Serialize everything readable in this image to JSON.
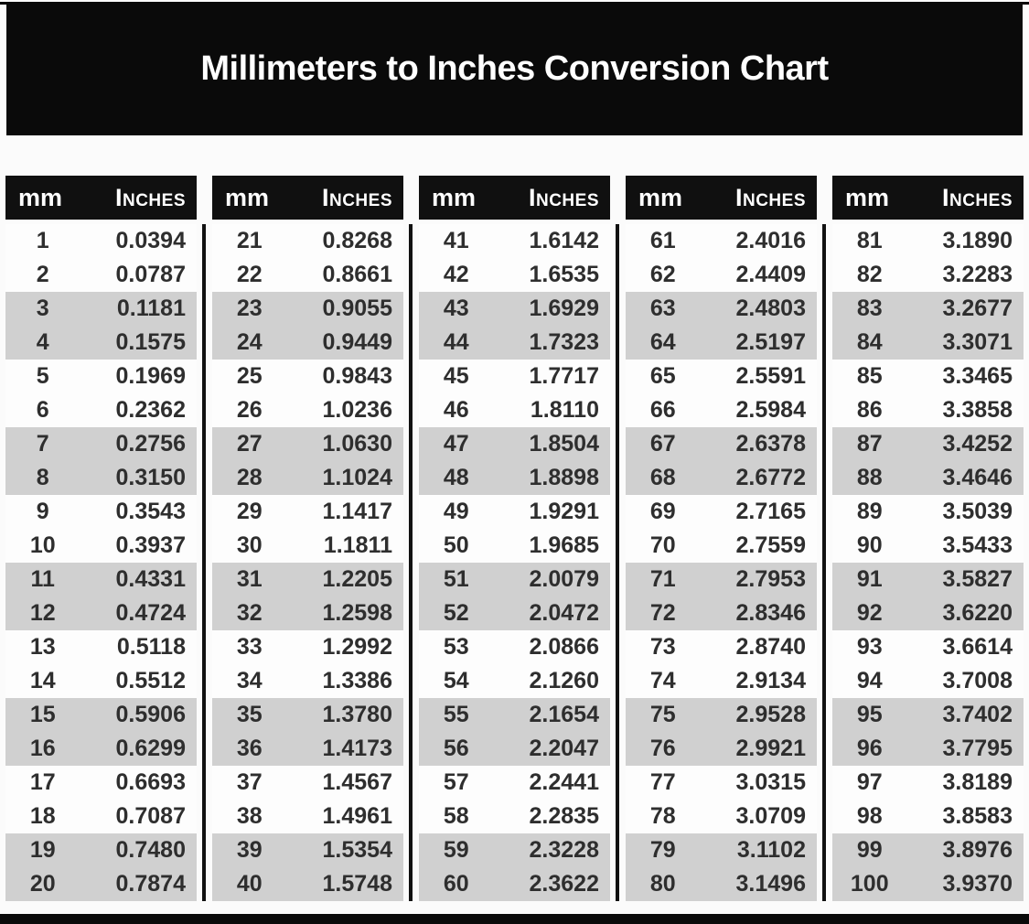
{
  "title": "Millimeters to Inches Conversion Chart",
  "column_headers": {
    "mm": "mm",
    "inches": "Inches"
  },
  "colors": {
    "page_bg": "#fbfbfb",
    "banner_bg": "#0a0a0a",
    "header_bg": "#101010",
    "header_text": "#ffffff",
    "row_plain_bg": "#fdfdfd",
    "row_shaded_bg": "#d0d0d0",
    "divider": "#111111",
    "value_text": "#2e2e2e"
  },
  "chart_data": {
    "type": "table",
    "title": "Millimeters to Inches Conversion Chart",
    "column_headers": [
      "mm",
      "Inches"
    ],
    "layout": "5 table groups side by side, rows shaded in alternating pairs, black vertical divider between groups",
    "tables": [
      {
        "mm_range": "1-20",
        "rows": [
          [
            1,
            "0.0394"
          ],
          [
            2,
            "0.0787"
          ],
          [
            3,
            "0.1181"
          ],
          [
            4,
            "0.1575"
          ],
          [
            5,
            "0.1969"
          ],
          [
            6,
            "0.2362"
          ],
          [
            7,
            "0.2756"
          ],
          [
            8,
            "0.3150"
          ],
          [
            9,
            "0.3543"
          ],
          [
            10,
            "0.3937"
          ],
          [
            11,
            "0.4331"
          ],
          [
            12,
            "0.4724"
          ],
          [
            13,
            "0.5118"
          ],
          [
            14,
            "0.5512"
          ],
          [
            15,
            "0.5906"
          ],
          [
            16,
            "0.6299"
          ],
          [
            17,
            "0.6693"
          ],
          [
            18,
            "0.7087"
          ],
          [
            19,
            "0.7480"
          ],
          [
            20,
            "0.7874"
          ]
        ]
      },
      {
        "mm_range": "21-40",
        "rows": [
          [
            21,
            "0.8268"
          ],
          [
            22,
            "0.8661"
          ],
          [
            23,
            "0.9055"
          ],
          [
            24,
            "0.9449"
          ],
          [
            25,
            "0.9843"
          ],
          [
            26,
            "1.0236"
          ],
          [
            27,
            "1.0630"
          ],
          [
            28,
            "1.1024"
          ],
          [
            29,
            "1.1417"
          ],
          [
            30,
            "1.1811"
          ],
          [
            31,
            "1.2205"
          ],
          [
            32,
            "1.2598"
          ],
          [
            33,
            "1.2992"
          ],
          [
            34,
            "1.3386"
          ],
          [
            35,
            "1.3780"
          ],
          [
            36,
            "1.4173"
          ],
          [
            37,
            "1.4567"
          ],
          [
            38,
            "1.4961"
          ],
          [
            39,
            "1.5354"
          ],
          [
            40,
            "1.5748"
          ]
        ]
      },
      {
        "mm_range": "41-60",
        "rows": [
          [
            41,
            "1.6142"
          ],
          [
            42,
            "1.6535"
          ],
          [
            43,
            "1.6929"
          ],
          [
            44,
            "1.7323"
          ],
          [
            45,
            "1.7717"
          ],
          [
            46,
            "1.8110"
          ],
          [
            47,
            "1.8504"
          ],
          [
            48,
            "1.8898"
          ],
          [
            49,
            "1.9291"
          ],
          [
            50,
            "1.9685"
          ],
          [
            51,
            "2.0079"
          ],
          [
            52,
            "2.0472"
          ],
          [
            53,
            "2.0866"
          ],
          [
            54,
            "2.1260"
          ],
          [
            55,
            "2.1654"
          ],
          [
            56,
            "2.2047"
          ],
          [
            57,
            "2.2441"
          ],
          [
            58,
            "2.2835"
          ],
          [
            59,
            "2.3228"
          ],
          [
            60,
            "2.3622"
          ]
        ]
      },
      {
        "mm_range": "61-80",
        "rows": [
          [
            61,
            "2.4016"
          ],
          [
            62,
            "2.4409"
          ],
          [
            63,
            "2.4803"
          ],
          [
            64,
            "2.5197"
          ],
          [
            65,
            "2.5591"
          ],
          [
            66,
            "2.5984"
          ],
          [
            67,
            "2.6378"
          ],
          [
            68,
            "2.6772"
          ],
          [
            69,
            "2.7165"
          ],
          [
            70,
            "2.7559"
          ],
          [
            71,
            "2.7953"
          ],
          [
            72,
            "2.8346"
          ],
          [
            73,
            "2.8740"
          ],
          [
            74,
            "2.9134"
          ],
          [
            75,
            "2.9528"
          ],
          [
            76,
            "2.9921"
          ],
          [
            77,
            "3.0315"
          ],
          [
            78,
            "3.0709"
          ],
          [
            79,
            "3.1102"
          ],
          [
            80,
            "3.1496"
          ]
        ]
      },
      {
        "mm_range": "81-100",
        "rows": [
          [
            81,
            "3.1890"
          ],
          [
            82,
            "3.2283"
          ],
          [
            83,
            "3.2677"
          ],
          [
            84,
            "3.3071"
          ],
          [
            85,
            "3.3465"
          ],
          [
            86,
            "3.3858"
          ],
          [
            87,
            "3.4252"
          ],
          [
            88,
            "3.4646"
          ],
          [
            89,
            "3.5039"
          ],
          [
            90,
            "3.5433"
          ],
          [
            91,
            "3.5827"
          ],
          [
            92,
            "3.6220"
          ],
          [
            93,
            "3.6614"
          ],
          [
            94,
            "3.7008"
          ],
          [
            95,
            "3.7402"
          ],
          [
            96,
            "3.7795"
          ],
          [
            97,
            "3.8189"
          ],
          [
            98,
            "3.8583"
          ],
          [
            99,
            "3.8976"
          ],
          [
            100,
            "3.9370"
          ]
        ]
      }
    ]
  }
}
